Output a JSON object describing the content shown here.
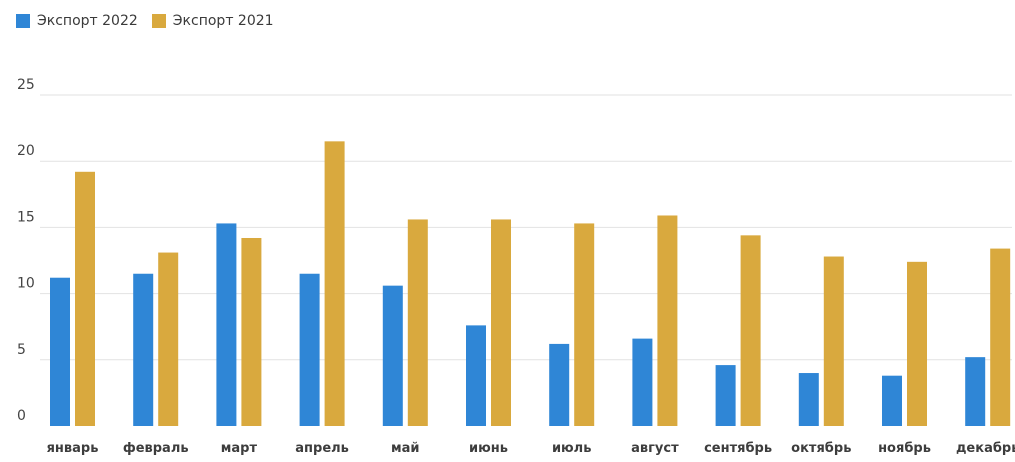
{
  "chart_data": {
    "type": "bar",
    "categories": [
      "январь",
      "февраль",
      "март",
      "апрель",
      "май",
      "июнь",
      "июль",
      "август",
      "сентябрь",
      "октябрь",
      "ноябрь",
      "декабрь"
    ],
    "series": [
      {
        "name": "Экспорт 2022",
        "color": "#2f86d6",
        "values": [
          11.2,
          11.5,
          15.3,
          11.5,
          10.6,
          7.6,
          6.2,
          6.6,
          4.6,
          4.0,
          3.8,
          5.2
        ]
      },
      {
        "name": "Экспорт 2021",
        "color": "#d9a93e",
        "values": [
          19.2,
          13.1,
          14.2,
          21.5,
          15.6,
          15.6,
          15.3,
          15.9,
          14.4,
          12.8,
          12.4,
          13.4
        ]
      }
    ],
    "yticks": [
      0,
      5,
      10,
      15,
      20,
      25
    ],
    "ylim": [
      0,
      25
    ],
    "grid": true,
    "legend_position": "top-left"
  }
}
